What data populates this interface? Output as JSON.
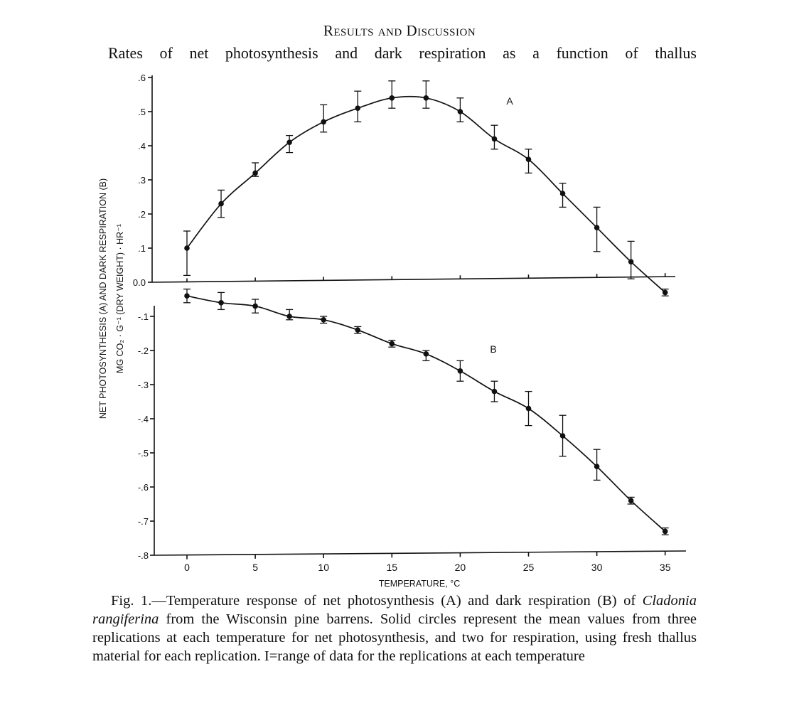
{
  "page": {
    "section_heading": "Results and Discussion",
    "body_line": "Rates of net photosynthesis and dark respiration as a function of thallus",
    "caption": {
      "fig_label": "Fig. 1.",
      "text_before_species": "—Temperature response of net photosynthesis (A) and dark respiration (B) of ",
      "species": "Cladonia rangiferina",
      "text_after_species": " from the Wisconsin pine barrens. Solid circles represent the mean values from three replications at each temperature for net photosynthesis, and two for respiration, using fresh thallus material for each replication. I=range of data for the replications at each temperature"
    }
  },
  "chart_data": {
    "type": "scatter",
    "xlabel": "TEMPERATURE, °C",
    "ylabel_line1": "NET PHOTOSYNTHESIS (A) AND DARK RESPIRATION (B)",
    "ylabel_line2": "MG CO₂ · G⁻¹ (DRY WEIGHT) · HR⁻¹",
    "xlim": [
      -2.5,
      36.5
    ],
    "ylim": [
      -0.8,
      0.6
    ],
    "x_ticks": [
      0,
      5,
      10,
      15,
      20,
      25,
      30,
      35
    ],
    "x_tick_labels": [
      "0",
      "5",
      "10",
      "15",
      "20",
      "25",
      "30",
      "35"
    ],
    "y_ticks_upper": [
      0.6,
      0.5,
      0.4,
      0.3,
      0.2,
      0.1,
      0.0
    ],
    "y_tick_labels_upper": [
      ".6",
      ".5",
      ".4",
      ".3",
      ".2",
      ".1",
      "0.0"
    ],
    "y_ticks_lower": [
      -0.1,
      -0.2,
      -0.3,
      -0.4,
      -0.5,
      -0.6,
      -0.7,
      -0.8
    ],
    "y_tick_labels_lower": [
      "-.1",
      "-.2",
      "-.3",
      "-.4",
      "-.5",
      "-.6",
      "-.7",
      "-.8"
    ],
    "grid": false,
    "series": [
      {
        "name": "A",
        "points": [
          {
            "x": 0,
            "y": 0.1,
            "lo": 0.02,
            "hi": 0.15
          },
          {
            "x": 2.5,
            "y": 0.23,
            "lo": 0.19,
            "hi": 0.27
          },
          {
            "x": 5,
            "y": 0.32,
            "lo": 0.31,
            "hi": 0.35
          },
          {
            "x": 7.5,
            "y": 0.41,
            "lo": 0.38,
            "hi": 0.43
          },
          {
            "x": 10,
            "y": 0.47,
            "lo": 0.44,
            "hi": 0.52
          },
          {
            "x": 12.5,
            "y": 0.51,
            "lo": 0.47,
            "hi": 0.56
          },
          {
            "x": 15,
            "y": 0.54,
            "lo": 0.51,
            "hi": 0.59
          },
          {
            "x": 17.5,
            "y": 0.54,
            "lo": 0.51,
            "hi": 0.59
          },
          {
            "x": 20,
            "y": 0.5,
            "lo": 0.47,
            "hi": 0.54
          },
          {
            "x": 22.5,
            "y": 0.42,
            "lo": 0.39,
            "hi": 0.46
          },
          {
            "x": 25,
            "y": 0.36,
            "lo": 0.32,
            "hi": 0.39
          },
          {
            "x": 27.5,
            "y": 0.26,
            "lo": 0.22,
            "hi": 0.29
          },
          {
            "x": 30,
            "y": 0.16,
            "lo": 0.09,
            "hi": 0.22
          },
          {
            "x": 32.5,
            "y": 0.06,
            "lo": 0.01,
            "hi": 0.12
          },
          {
            "x": 35,
            "y": -0.03,
            "lo": -0.04,
            "hi": -0.02
          }
        ]
      },
      {
        "name": "B",
        "points": [
          {
            "x": 0,
            "y": -0.04,
            "lo": -0.06,
            "hi": -0.02
          },
          {
            "x": 2.5,
            "y": -0.06,
            "lo": -0.08,
            "hi": -0.03
          },
          {
            "x": 5,
            "y": -0.07,
            "lo": -0.09,
            "hi": -0.05
          },
          {
            "x": 7.5,
            "y": -0.1,
            "lo": -0.11,
            "hi": -0.08
          },
          {
            "x": 10,
            "y": -0.11,
            "lo": -0.12,
            "hi": -0.1
          },
          {
            "x": 12.5,
            "y": -0.14,
            "lo": -0.15,
            "hi": -0.13
          },
          {
            "x": 15,
            "y": -0.18,
            "lo": -0.19,
            "hi": -0.17
          },
          {
            "x": 17.5,
            "y": -0.21,
            "lo": -0.23,
            "hi": -0.2
          },
          {
            "x": 20,
            "y": -0.26,
            "lo": -0.29,
            "hi": -0.23
          },
          {
            "x": 22.5,
            "y": -0.32,
            "lo": -0.35,
            "hi": -0.29
          },
          {
            "x": 25,
            "y": -0.37,
            "lo": -0.42,
            "hi": -0.32
          },
          {
            "x": 27.5,
            "y": -0.45,
            "lo": -0.51,
            "hi": -0.39
          },
          {
            "x": 30,
            "y": -0.54,
            "lo": -0.58,
            "hi": -0.49
          },
          {
            "x": 32.5,
            "y": -0.64,
            "lo": -0.65,
            "hi": -0.63
          },
          {
            "x": 35,
            "y": -0.73,
            "lo": -0.74,
            "hi": -0.72
          }
        ]
      }
    ]
  }
}
